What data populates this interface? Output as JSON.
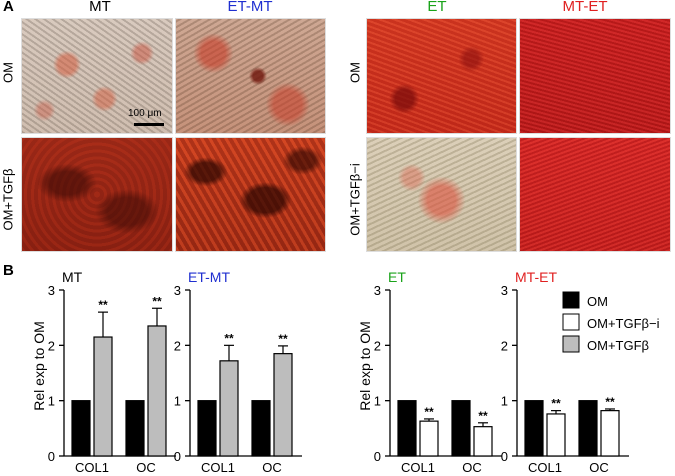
{
  "panelA": {
    "letter": "A",
    "column_titles": [
      {
        "text": "MT",
        "color": "#000000"
      },
      {
        "text": "ET-MT",
        "color": "#1f2fd0"
      },
      {
        "text": "ET",
        "color": "#1aa31a"
      },
      {
        "text": "MT-ET",
        "color": "#e02020"
      }
    ],
    "row_labels_left": [
      "OM",
      "OM+TGFβ"
    ],
    "row_labels_right": [
      "OM",
      "OM+TGFβ−i"
    ],
    "scale_bar": "100 μm"
  },
  "panelB": {
    "letter": "B",
    "ylabel_left": "Rel exp to OM",
    "ylabel_right": "Rel exp to OM",
    "legend": [
      {
        "label": "OM",
        "color": "#000000"
      },
      {
        "label": "OM+TGFβ−i",
        "color": "#ffffff"
      },
      {
        "label": "OM+TGFβ",
        "color": "#bdbdbd"
      }
    ]
  },
  "chart_data": [
    {
      "type": "bar",
      "title": "MT",
      "title_color": "#000000",
      "categories": [
        "COL1",
        "OC"
      ],
      "ylim": [
        0,
        3
      ],
      "yticks": [
        0,
        1,
        2,
        3
      ],
      "series": [
        {
          "name": "OM",
          "color": "#000000",
          "values": [
            1,
            1
          ],
          "errors": [
            0,
            0
          ]
        },
        {
          "name": "OM+TGFβ",
          "color": "#bdbdbd",
          "values": [
            2.15,
            2.35
          ],
          "errors": [
            0.45,
            0.32
          ]
        }
      ],
      "annotations": [
        "**",
        "**"
      ]
    },
    {
      "type": "bar",
      "title": "ET-MT",
      "title_color": "#1f2fd0",
      "categories": [
        "COL1",
        "OC"
      ],
      "ylim": [
        0,
        3
      ],
      "yticks": [
        0,
        1,
        2,
        3
      ],
      "series": [
        {
          "name": "OM",
          "color": "#000000",
          "values": [
            1,
            1
          ],
          "errors": [
            0,
            0
          ]
        },
        {
          "name": "OM+TGFβ",
          "color": "#bdbdbd",
          "values": [
            1.72,
            1.85
          ],
          "errors": [
            0.28,
            0.14
          ]
        }
      ],
      "annotations": [
        "**",
        "**"
      ]
    },
    {
      "type": "bar",
      "title": "ET",
      "title_color": "#1aa31a",
      "categories": [
        "COL1",
        "OC"
      ],
      "ylim": [
        0,
        3
      ],
      "yticks": [
        0,
        1,
        2,
        3
      ],
      "series": [
        {
          "name": "OM",
          "color": "#000000",
          "values": [
            1,
            1
          ],
          "errors": [
            0,
            0
          ]
        },
        {
          "name": "OM+TGFβ−i",
          "color": "#ffffff",
          "values": [
            0.63,
            0.53
          ],
          "errors": [
            0.04,
            0.07
          ]
        }
      ],
      "annotations": [
        "**",
        "**"
      ]
    },
    {
      "type": "bar",
      "title": "MT-ET",
      "title_color": "#e02020",
      "categories": [
        "COL1",
        "OC"
      ],
      "ylim": [
        0,
        3
      ],
      "yticks": [
        0,
        1,
        2,
        3
      ],
      "series": [
        {
          "name": "OM",
          "color": "#000000",
          "values": [
            1,
            1
          ],
          "errors": [
            0,
            0
          ]
        },
        {
          "name": "OM+TGFβ−i",
          "color": "#ffffff",
          "values": [
            0.76,
            0.82
          ],
          "errors": [
            0.06,
            0.03
          ]
        }
      ],
      "annotations": [
        "**",
        "**"
      ]
    }
  ]
}
